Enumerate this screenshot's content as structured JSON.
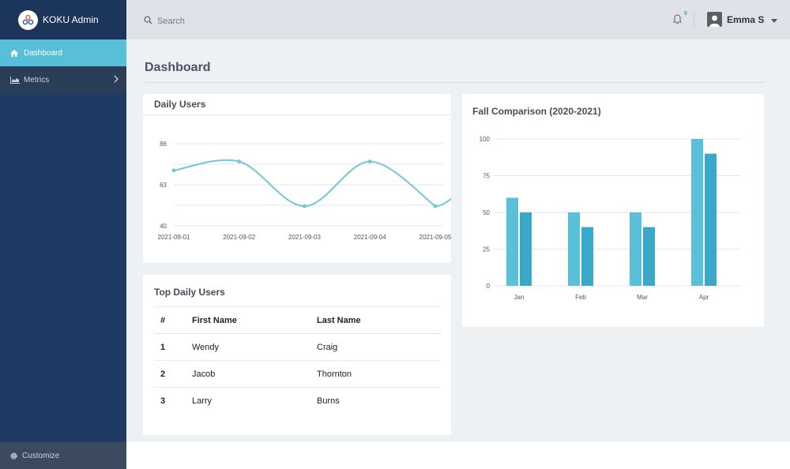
{
  "brand": {
    "name": "KOKU Admin",
    "logo_icon": "koku-logo-icon"
  },
  "sidebar": {
    "items": [
      {
        "label": "Dashboard",
        "icon": "home-icon",
        "active": true
      },
      {
        "label": "Metrics",
        "icon": "area-chart-icon",
        "active": false
      }
    ],
    "customize": {
      "label": "Customize",
      "icon": "gear-icon"
    }
  },
  "topbar": {
    "search": {
      "placeholder": "Search",
      "value": ""
    },
    "notifications": {
      "count": "8"
    },
    "user": {
      "name": "Emma S"
    }
  },
  "page": {
    "title": "Dashboard"
  },
  "daily_users": {
    "title": "Daily Users",
    "chart_data": {
      "type": "line",
      "x": [
        "2021-09-01",
        "2021-09-02",
        "2021-09-03",
        "2021-09-04",
        "2021-09-05"
      ],
      "values": [
        71,
        76,
        51,
        76,
        51
      ],
      "y_ticks": [
        "86",
        "63",
        "40"
      ],
      "ylim": [
        40,
        86
      ],
      "grid": true,
      "color": "#72c6d8"
    }
  },
  "top_daily_users": {
    "title": "Top Daily Users",
    "columns": [
      "#",
      "First Name",
      "Last Name"
    ],
    "rows": [
      [
        "1",
        "Wendy",
        "Craig"
      ],
      [
        "2",
        "Jacob",
        "Thornton"
      ],
      [
        "3",
        "Larry",
        "Burns"
      ]
    ]
  },
  "fall_comparison": {
    "title": "Fall Comparison (2020-2021)",
    "chart_data": {
      "type": "bar",
      "categories": [
        "Jan",
        "Feb",
        "Mar",
        "Apr"
      ],
      "series": [
        {
          "values": [
            60,
            50,
            50,
            100
          ],
          "color": "#5ac0d9"
        },
        {
          "values": [
            50,
            40,
            40,
            90
          ],
          "color": "#3aa9c9"
        }
      ],
      "y_ticks": [
        "100",
        "75",
        "50",
        "25",
        "0"
      ],
      "ylim": [
        0,
        100
      ],
      "grid": true
    }
  }
}
